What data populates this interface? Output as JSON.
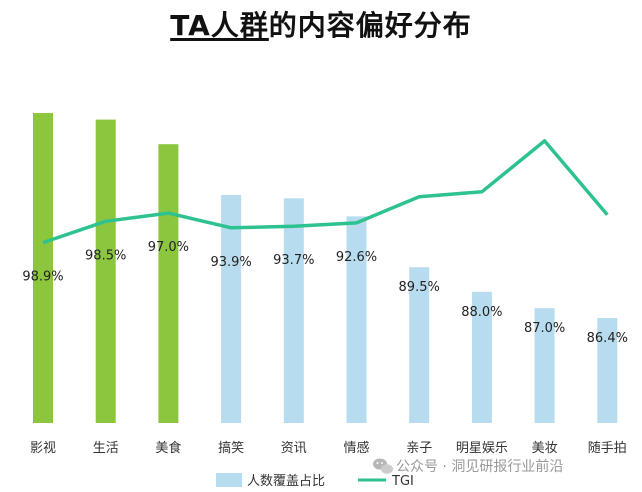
{
  "chart_data": {
    "type": "bar",
    "title_part1": "TA人群",
    "title_part2": "的内容偏好分布",
    "categories": [
      "影视",
      "生活",
      "美食",
      "搞笑",
      "资讯",
      "情感",
      "亲子",
      "明星娱乐",
      "美妆",
      "随手拍"
    ],
    "series": [
      {
        "name": "人数覆盖占比",
        "values": [
          98.9,
          98.5,
          97.0,
          93.9,
          93.7,
          92.6,
          89.5,
          88.0,
          87.0,
          86.4
        ],
        "labels": [
          "98.9%",
          "98.5%",
          "97.0%",
          "93.9%",
          "93.7%",
          "92.6%",
          "89.5%",
          "88.0%",
          "87.0%",
          "86.4%"
        ],
        "highlight_count": 3
      },
      {
        "name": "TGI",
        "type": "line",
        "values": [
          110,
          123,
          128,
          119,
          120,
          122,
          138,
          141,
          172,
          127
        ]
      }
    ],
    "bar_ylim": [
      80,
      100
    ],
    "tgi_ylim": [
      0,
      200
    ],
    "legend_position": "bottom",
    "colors": {
      "highlight_bar": "#8cc63f",
      "normal_bar": "#b7dcef",
      "tgi_line": "#2ec28f"
    }
  },
  "watermark": {
    "text": "公众号 · 洞见研报行业前沿"
  }
}
